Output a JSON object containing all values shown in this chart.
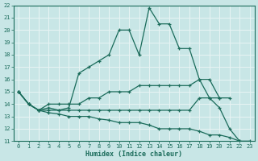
{
  "xlabel": "Humidex (Indice chaleur)",
  "xlim": [
    -0.5,
    23.5
  ],
  "ylim": [
    11,
    22
  ],
  "xticks": [
    0,
    1,
    2,
    3,
    4,
    5,
    6,
    7,
    8,
    9,
    10,
    11,
    12,
    13,
    14,
    15,
    16,
    17,
    18,
    19,
    20,
    21,
    22,
    23
  ],
  "yticks": [
    11,
    12,
    13,
    14,
    15,
    16,
    17,
    18,
    19,
    20,
    21,
    22
  ],
  "background_color": "#c8e6e6",
  "grid_color": "#e8f4f4",
  "line_color": "#1a6b5a",
  "lines": [
    {
      "x": [
        0,
        1,
        2,
        3,
        4,
        5,
        6,
        7,
        8,
        9,
        10,
        11,
        12,
        13,
        14,
        15,
        16,
        17,
        18,
        19,
        20,
        21,
        22,
        23
      ],
      "y": [
        15,
        14,
        13.5,
        13.7,
        13.5,
        13.7,
        16.5,
        17,
        17.5,
        18,
        20,
        20,
        18,
        21.8,
        20.5,
        20.5,
        18.5,
        18.5,
        16,
        14.5,
        13.7,
        12,
        11,
        null
      ]
    },
    {
      "x": [
        0,
        1,
        2,
        3,
        4,
        5,
        6,
        7,
        8,
        9,
        10,
        11,
        12,
        13,
        14,
        15,
        16,
        17,
        18,
        19,
        20,
        21
      ],
      "y": [
        15,
        14,
        13.5,
        14,
        14,
        14,
        14,
        14.5,
        14.5,
        15,
        15,
        15,
        15.5,
        15.5,
        15.5,
        15.5,
        15.5,
        15.5,
        16,
        16,
        14.5,
        14.5
      ]
    },
    {
      "x": [
        0,
        1,
        2,
        3,
        4,
        5,
        6,
        7,
        8,
        9,
        10,
        11,
        12,
        13,
        14,
        15,
        16,
        17,
        18,
        19,
        20
      ],
      "y": [
        15,
        14,
        13.5,
        13.5,
        13.5,
        13.5,
        13.5,
        13.5,
        13.5,
        13.5,
        13.5,
        13.5,
        13.5,
        13.5,
        13.5,
        13.5,
        13.5,
        13.5,
        14.5,
        14.5,
        14.5
      ]
    },
    {
      "x": [
        0,
        1,
        2,
        3,
        4,
        5,
        6,
        7,
        8,
        9,
        10,
        11,
        12,
        13,
        14,
        15,
        16,
        17,
        18,
        19,
        20,
        21,
        22,
        23
      ],
      "y": [
        15,
        14,
        13.5,
        13.3,
        13.2,
        13.0,
        13.0,
        13.0,
        12.8,
        12.7,
        12.5,
        12.5,
        12.5,
        12.3,
        12.0,
        12.0,
        12.0,
        12.0,
        11.8,
        11.5,
        11.5,
        11.3,
        11.0,
        11.0
      ]
    }
  ]
}
